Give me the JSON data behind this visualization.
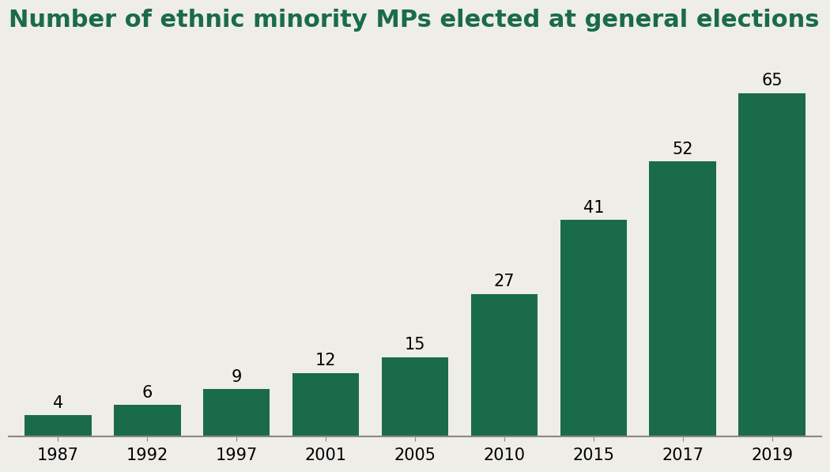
{
  "title": "Number of ethnic minority MPs elected at general elections",
  "categories": [
    "1987",
    "1992",
    "1997",
    "2001",
    "2005",
    "2010",
    "2015",
    "2017",
    "2019"
  ],
  "values": [
    4,
    6,
    9,
    12,
    15,
    27,
    41,
    52,
    65
  ],
  "bar_color": "#1a6b4a",
  "background_color": "#eeede8",
  "title_fontsize": 22,
  "title_color": "#1a6b4a",
  "label_fontsize": 15,
  "tick_fontsize": 15,
  "ylim": [
    0,
    75
  ]
}
